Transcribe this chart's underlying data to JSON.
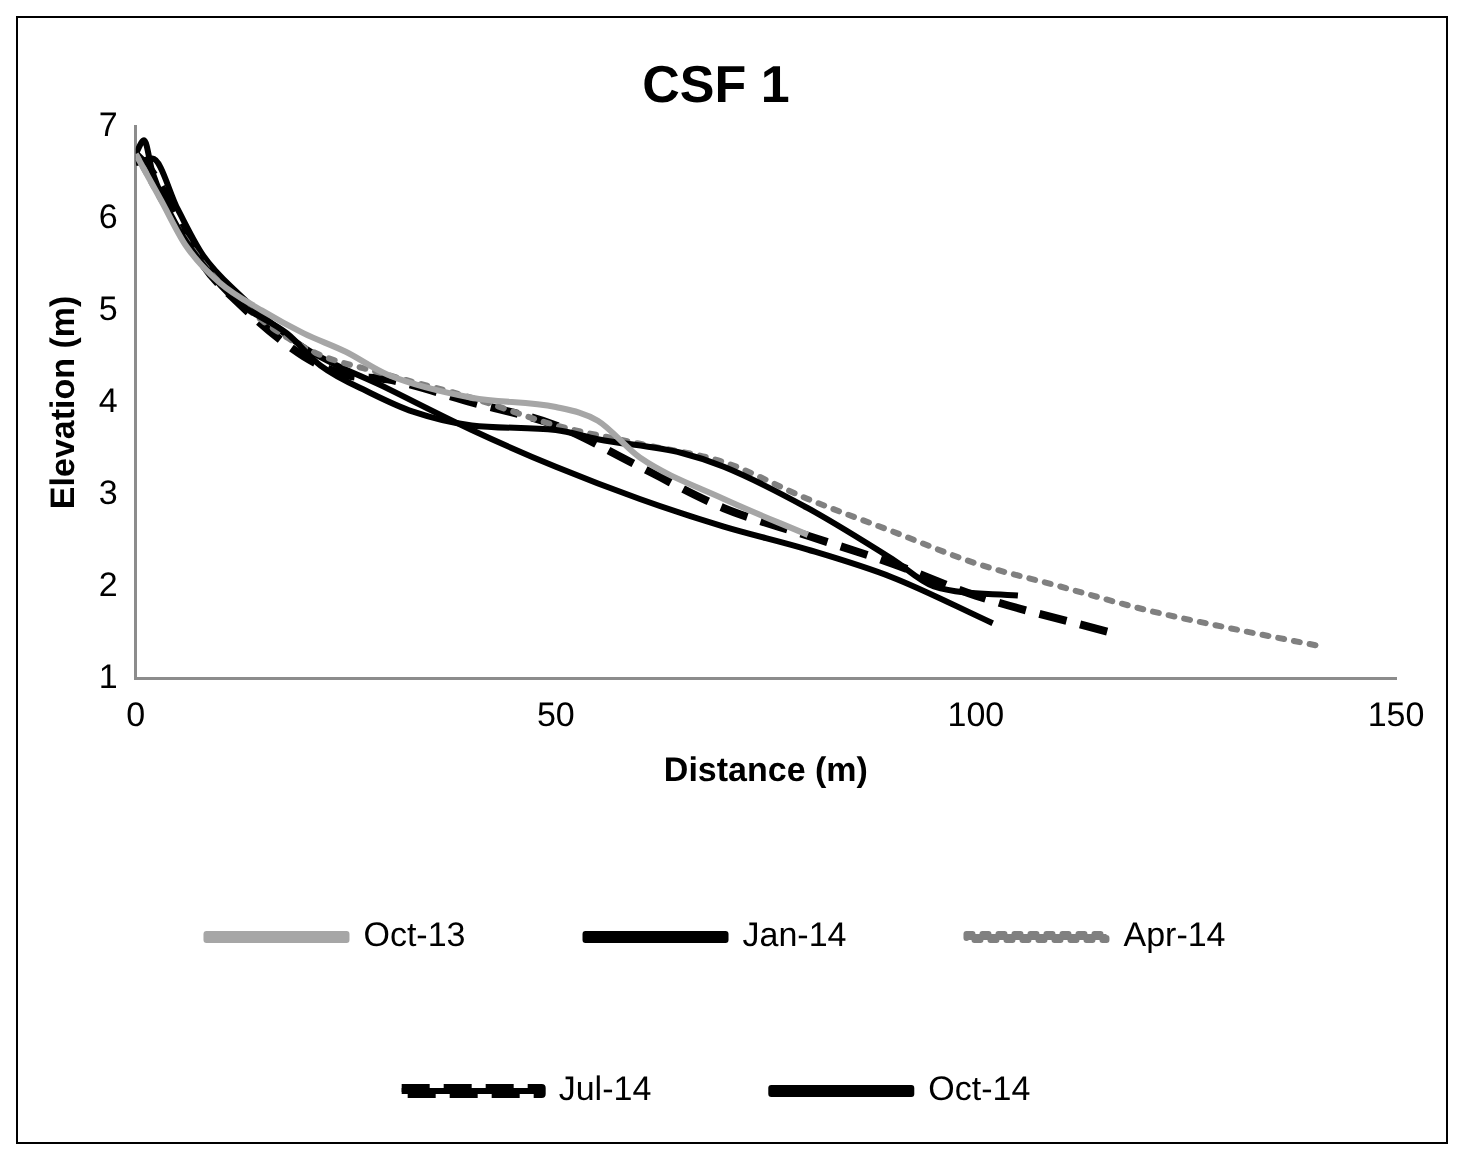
{
  "chart_data": {
    "type": "line",
    "title": "CSF 1",
    "xlabel": "Distance (m)",
    "ylabel": "Elevation (m)",
    "xlim": [
      0,
      150
    ],
    "xticks": [
      0,
      50,
      100,
      150
    ],
    "ylim": [
      1,
      7
    ],
    "yticks": [
      1,
      2,
      3,
      4,
      5,
      6,
      7
    ],
    "grid": false,
    "legend": "bottom",
    "marker": "none",
    "series": [
      {
        "name": "Oct-13",
        "color": "#a6a6a6",
        "line_style": "solid",
        "x": [
          0,
          3,
          6,
          10,
          15,
          20,
          25,
          30,
          40,
          50,
          55,
          60,
          70,
          80
        ],
        "values": [
          6.7,
          6.2,
          5.7,
          5.3,
          5.0,
          4.75,
          4.55,
          4.3,
          4.05,
          3.95,
          3.8,
          3.4,
          2.95,
          2.56
        ]
      },
      {
        "name": "Jan-14",
        "color": "#000000",
        "line_style": "solid",
        "x": [
          0,
          1,
          2,
          5,
          8,
          12,
          18,
          22,
          28,
          33,
          40,
          50,
          55,
          65,
          70,
          80,
          90,
          95,
          105
        ],
        "values": [
          6.7,
          6.85,
          6.5,
          5.9,
          5.5,
          5.1,
          4.75,
          4.4,
          4.1,
          3.9,
          3.75,
          3.7,
          3.6,
          3.45,
          3.3,
          2.85,
          2.3,
          2.0,
          1.9
        ]
      },
      {
        "name": "Apr-14",
        "color": "#808080",
        "line_style": "dotted",
        "x": [
          0,
          5,
          10,
          20,
          30,
          40,
          50,
          60,
          70,
          80,
          90,
          100,
          110,
          120,
          130,
          141
        ],
        "values": [
          6.7,
          5.9,
          5.3,
          4.6,
          4.3,
          4.05,
          3.75,
          3.55,
          3.35,
          2.95,
          2.6,
          2.25,
          2.0,
          1.75,
          1.55,
          1.35
        ]
      },
      {
        "name": "Jul-14",
        "color": "#000000",
        "line_style": "dashed",
        "x": [
          0,
          2,
          5,
          8,
          12,
          20,
          25,
          30,
          40,
          50,
          60,
          70,
          80,
          90,
          100,
          116
        ],
        "values": [
          6.7,
          6.5,
          6.0,
          5.5,
          5.1,
          4.5,
          4.3,
          4.25,
          4.0,
          3.75,
          3.3,
          2.85,
          2.55,
          2.25,
          1.9,
          1.5
        ]
      },
      {
        "name": "Oct-14",
        "color": "#000000",
        "line_style": "solid",
        "x": [
          0,
          2,
          5,
          8,
          12,
          20,
          30,
          40,
          50,
          60,
          70,
          80,
          90,
          102
        ],
        "values": [
          6.6,
          6.65,
          6.1,
          5.6,
          5.2,
          4.6,
          4.15,
          3.7,
          3.3,
          2.95,
          2.65,
          2.4,
          2.1,
          1.6
        ]
      }
    ]
  }
}
